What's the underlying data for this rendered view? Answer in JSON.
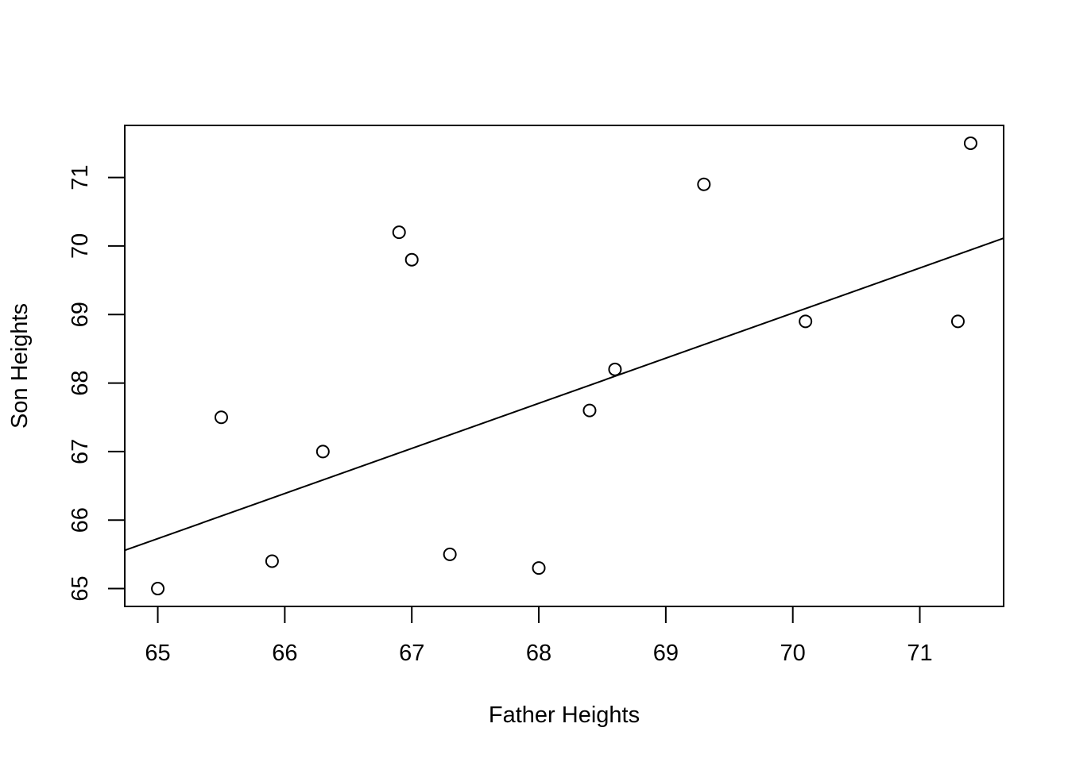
{
  "chart_data": {
    "type": "scatter",
    "title": "",
    "xlabel": "Father Heights",
    "ylabel": "Son Heights",
    "xlim": [
      64.74,
      71.66
    ],
    "ylim": [
      64.74,
      71.76
    ],
    "x_ticks": [
      65,
      66,
      67,
      68,
      69,
      70,
      71
    ],
    "y_ticks": [
      65,
      66,
      67,
      68,
      69,
      70,
      71
    ],
    "grid": false,
    "points": [
      {
        "x": 65.0,
        "y": 65.0
      },
      {
        "x": 65.5,
        "y": 67.5
      },
      {
        "x": 65.9,
        "y": 65.4
      },
      {
        "x": 66.3,
        "y": 67.0
      },
      {
        "x": 66.9,
        "y": 70.2
      },
      {
        "x": 67.0,
        "y": 69.8
      },
      {
        "x": 67.3,
        "y": 65.5
      },
      {
        "x": 68.0,
        "y": 65.3
      },
      {
        "x": 68.4,
        "y": 67.6
      },
      {
        "x": 68.6,
        "y": 68.2
      },
      {
        "x": 69.3,
        "y": 70.9
      },
      {
        "x": 70.1,
        "y": 68.9
      },
      {
        "x": 71.3,
        "y": 68.9
      },
      {
        "x": 71.4,
        "y": 71.5
      }
    ],
    "regression_line": {
      "intercept": 22.94,
      "slope": 0.6583
    }
  }
}
